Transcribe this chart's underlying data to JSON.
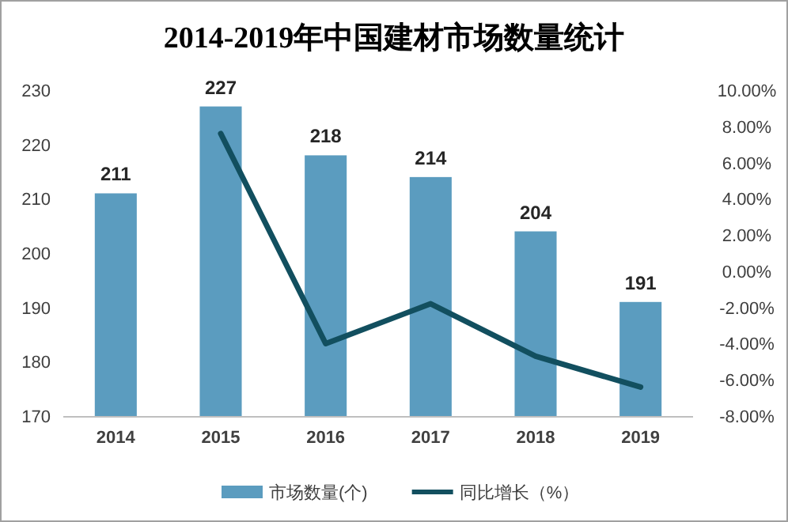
{
  "chart_data": {
    "type": "bar",
    "title": "2014-2019年中国建材市场数量统计",
    "categories": [
      "2014",
      "2015",
      "2016",
      "2017",
      "2018",
      "2019"
    ],
    "series": [
      {
        "name": "市场数量(个)",
        "color": "#5b9cbf",
        "values": [
          211,
          227,
          218,
          214,
          204,
          191
        ],
        "value_labels": [
          "211",
          "227",
          "218",
          "214",
          "204",
          "191"
        ]
      },
      {
        "name": "同比增长（%）",
        "type": "line",
        "axis": "y2",
        "color": "#124f5f",
        "values": [
          null,
          7.6,
          -4.0,
          -1.8,
          -4.7,
          -6.4
        ]
      }
    ],
    "ylim": [
      170,
      230
    ],
    "yticks": [
      170,
      180,
      190,
      200,
      210,
      220,
      230
    ],
    "y2lim": [
      -8,
      10
    ],
    "y2ticks": [
      {
        "value": 10,
        "label": "10.00%"
      },
      {
        "value": 8,
        "label": "8.00%"
      },
      {
        "value": 6,
        "label": "6.00%"
      },
      {
        "value": 4,
        "label": "4.00%"
      },
      {
        "value": 2,
        "label": "2.00%"
      },
      {
        "value": 0,
        "label": "0.00%"
      },
      {
        "value": -2,
        "label": "-2.00%"
      },
      {
        "value": -4,
        "label": "-4.00%"
      },
      {
        "value": -6,
        "label": "-6.00%"
      },
      {
        "value": -8,
        "label": "-8.00%"
      }
    ],
    "legend": "bottom"
  }
}
